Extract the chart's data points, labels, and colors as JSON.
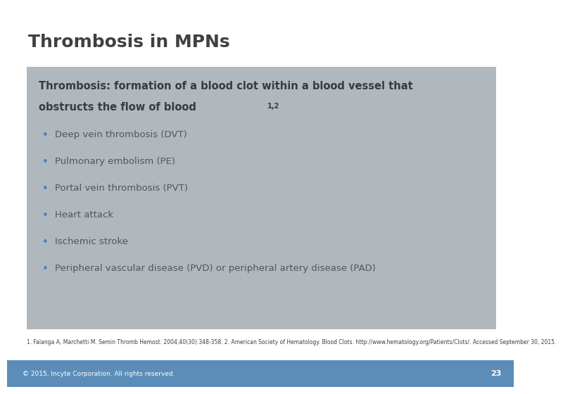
{
  "title": "Thrombosis in MPNs",
  "title_color": "#404040",
  "title_fontsize": 18,
  "box_bg_color": "#b0b8be",
  "bg_color": "#ffffff",
  "footer_bar_color": "#5b8db8",
  "footer_text": "© 2015, Incyte Corporation. All rights reserved.",
  "footer_page": "23",
  "footer_text_color": "#ffffff",
  "header_bold_text_line1": "Thrombosis: formation of a blood clot within a blood vessel that",
  "header_bold_text_line2": "obstructs the flow of blood",
  "header_superscript": "1,2",
  "header_text_color": "#3a3a3a",
  "header_fontsize": 10.5,
  "bullet_color": "#4a7db5",
  "bullet_text_color": "#555555",
  "bullet_fontsize": 9.5,
  "bullets": [
    "Deep vein thrombosis (DVT)",
    "Pulmonary embolism (PE)",
    "Portal vein thrombosis (PVT)",
    "Heart attack",
    "Ischemic stroke",
    "Peripheral vascular disease (PVD) or peripheral artery disease (PAD)"
  ],
  "footnote_text": "1. Falanga A, Marchetti M. Semin Thromb Hemost. 2004;40(30):348-358. 2. American Society of Hematology. Blood Clots. http://www.hematology.org/Patients/Clots/. Accessed September 30, 2015.",
  "footnote_color": "#404040",
  "footnote_fontsize": 5.5
}
